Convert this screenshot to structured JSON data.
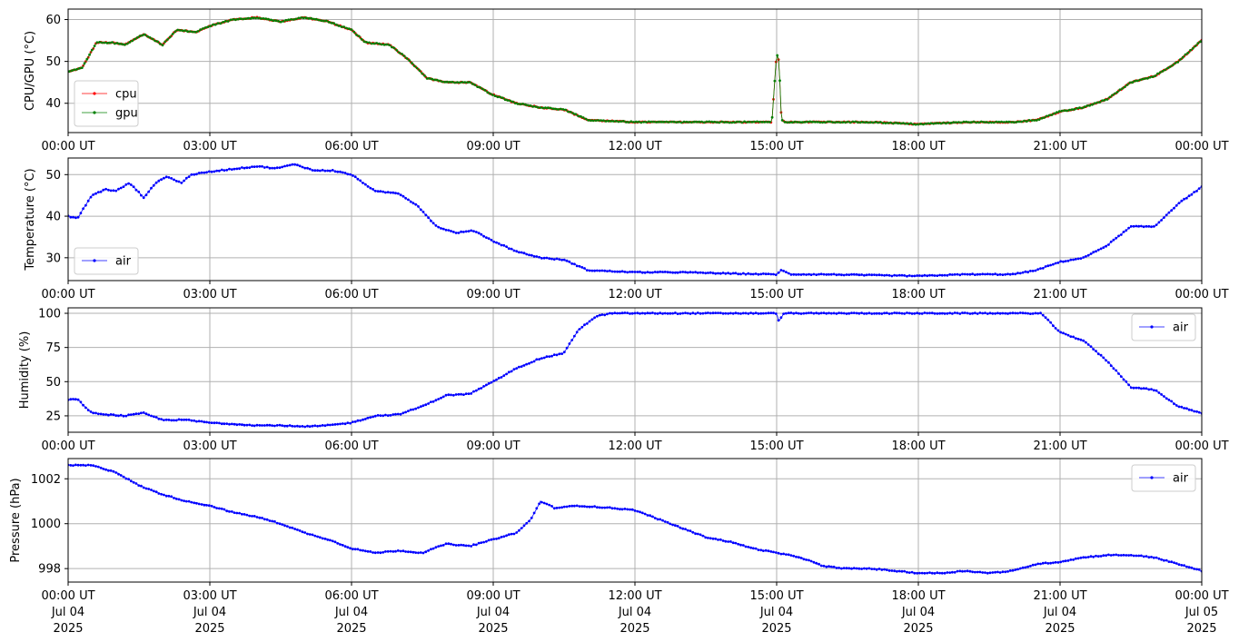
{
  "x_ticks": [
    {
      "t": 0,
      "time": "00:00 UT",
      "date": "Jul 04",
      "year": "2025"
    },
    {
      "t": 3,
      "time": "03:00 UT",
      "date": "Jul 04",
      "year": "2025"
    },
    {
      "t": 6,
      "time": "06:00 UT",
      "date": "Jul 04",
      "year": "2025"
    },
    {
      "t": 9,
      "time": "09:00 UT",
      "date": "Jul 04",
      "year": "2025"
    },
    {
      "t": 12,
      "time": "12:00 UT",
      "date": "Jul 04",
      "year": "2025"
    },
    {
      "t": 15,
      "time": "15:00 UT",
      "date": "Jul 04",
      "year": "2025"
    },
    {
      "t": 18,
      "time": "18:00 UT",
      "date": "Jul 04",
      "year": "2025"
    },
    {
      "t": 21,
      "time": "21:00 UT",
      "date": "Jul 04",
      "year": "2025"
    },
    {
      "t": 24,
      "time": "00:00 UT",
      "date": "Jul 05",
      "year": "2025"
    }
  ],
  "chart_data": [
    {
      "type": "line",
      "ylabel": "CPU/GPU (°C)",
      "xlim": [
        "2025-07-04 00:00",
        "2025-07-05 00:00"
      ],
      "ylim": [
        33,
        62.5
      ],
      "yticks": [
        40,
        50,
        60
      ],
      "grid": true,
      "legend": "lower-left",
      "x_hours": [
        0,
        0.3,
        0.6,
        0.9,
        1.2,
        1.6,
        2.0,
        2.3,
        2.7,
        3.0,
        3.5,
        4.0,
        4.5,
        5.0,
        5.5,
        6.0,
        6.3,
        6.8,
        7.2,
        7.6,
        8.0,
        8.5,
        9.0,
        9.5,
        10.0,
        10.5,
        11.0,
        12.0,
        13.0,
        14.0,
        14.9,
        15.0,
        15.05,
        15.1,
        15.2,
        16.0,
        17.0,
        18.0,
        19.0,
        20.0,
        20.5,
        21.0,
        21.5,
        22.0,
        22.5,
        23.0,
        23.5,
        24.0
      ],
      "series": [
        {
          "name": "cpu",
          "color": "#ff0000",
          "values": [
            47.5,
            48.5,
            54.5,
            54.5,
            54,
            56.5,
            54,
            57.5,
            57,
            58.5,
            60,
            60.5,
            59.5,
            60.5,
            59.5,
            57.5,
            54.5,
            54,
            50.5,
            46,
            45,
            45,
            42,
            40,
            39,
            38.5,
            36,
            35.5,
            35.5,
            35.5,
            35.5,
            52,
            50,
            36,
            35.5,
            35.5,
            35.5,
            35,
            35.5,
            35.5,
            36,
            38,
            39,
            41,
            45,
            46.5,
            50,
            55
          ]
        },
        {
          "name": "gpu",
          "color": "#008000",
          "values": [
            47.5,
            48.5,
            54.5,
            54.5,
            54,
            56.5,
            54,
            57.5,
            57,
            58.5,
            60,
            60.5,
            59.5,
            60.5,
            59.5,
            57.5,
            54.5,
            54,
            50.5,
            46,
            45,
            45,
            42,
            40,
            39,
            38.5,
            36,
            35.5,
            35.5,
            35.5,
            35.5,
            52,
            50,
            36,
            35.5,
            35.5,
            35.5,
            35,
            35.5,
            35.5,
            36,
            38,
            39,
            41,
            45,
            46.5,
            50,
            55
          ]
        }
      ]
    },
    {
      "type": "line",
      "ylabel": "Temperature (°C)",
      "xlim": [
        "2025-07-04 00:00",
        "2025-07-05 00:00"
      ],
      "ylim": [
        24.5,
        54
      ],
      "yticks": [
        30,
        40,
        50
      ],
      "grid": true,
      "legend": "lower-left",
      "x_hours": [
        0,
        0.2,
        0.5,
        0.8,
        1.0,
        1.3,
        1.6,
        1.9,
        2.1,
        2.4,
        2.6,
        2.9,
        3.2,
        3.6,
        4.0,
        4.4,
        4.8,
        5.2,
        5.6,
        6.0,
        6.5,
        7.0,
        7.4,
        7.8,
        8.2,
        8.6,
        9.0,
        9.5,
        10.0,
        10.5,
        11.0,
        12.0,
        13.0,
        14.0,
        15.0,
        15.1,
        15.3,
        16.0,
        17.0,
        18.0,
        19.0,
        20.0,
        20.5,
        21.0,
        21.5,
        22.0,
        22.5,
        23.0,
        23.5,
        24.0
      ],
      "series": [
        {
          "name": "air",
          "color": "#0000ff",
          "values": [
            40,
            39.5,
            45,
            46.5,
            46,
            48,
            44.5,
            48.5,
            49.5,
            48,
            50,
            50.5,
            51,
            51.5,
            52,
            51.5,
            52.5,
            51,
            51,
            50,
            46,
            45.5,
            42.5,
            37.5,
            36,
            36.5,
            34,
            31.5,
            30,
            29.5,
            27,
            26.5,
            26.5,
            26.2,
            26,
            27,
            26,
            26,
            25.8,
            25.6,
            26,
            26,
            27,
            29,
            30,
            33,
            37.5,
            37.5,
            43,
            47
          ]
        }
      ]
    },
    {
      "type": "line",
      "ylabel": "Humidity (%)",
      "xlim": [
        "2025-07-04 00:00",
        "2025-07-05 00:00"
      ],
      "ylim": [
        13,
        104
      ],
      "yticks": [
        25,
        50,
        75,
        100
      ],
      "grid": true,
      "legend": "top-right",
      "x_hours": [
        0,
        0.2,
        0.5,
        0.8,
        1.2,
        1.6,
        2.0,
        2.5,
        3.0,
        3.5,
        4.0,
        4.5,
        5.0,
        5.5,
        6.0,
        6.5,
        7.0,
        7.5,
        8.0,
        8.5,
        9.0,
        9.5,
        10.0,
        10.5,
        10.8,
        11.2,
        11.5,
        12.0,
        13.0,
        14.0,
        15.0,
        15.05,
        15.15,
        15.4,
        16.0,
        17.0,
        18.0,
        19.0,
        20.0,
        20.6,
        21.0,
        21.5,
        22.0,
        22.5,
        23.0,
        23.5,
        24.0
      ],
      "series": [
        {
          "name": "air",
          "color": "#0000ff",
          "values": [
            37,
            37,
            27,
            26,
            25,
            27,
            22,
            22,
            20,
            19,
            18,
            18,
            17,
            18,
            20,
            25,
            26,
            32,
            40,
            41,
            50,
            60,
            67,
            71,
            88,
            98,
            100,
            100,
            100,
            100,
            100,
            94,
            100,
            100,
            100,
            100,
            100,
            100,
            100,
            100,
            86,
            80,
            65,
            46,
            44,
            32,
            27
          ]
        }
      ]
    },
    {
      "type": "line",
      "ylabel": "Pressure (hPa)",
      "xlim": [
        "2025-07-04 00:00",
        "2025-07-05 00:00"
      ],
      "ylim": [
        997.4,
        1002.9
      ],
      "yticks": [
        998,
        1000,
        1002
      ],
      "grid": true,
      "legend": "top-right",
      "x_hours": [
        0,
        0.5,
        1.0,
        1.5,
        2.0,
        2.5,
        3.0,
        3.5,
        4.0,
        4.5,
        5.0,
        5.5,
        6.0,
        6.5,
        7.0,
        7.5,
        8.0,
        8.5,
        9.0,
        9.5,
        9.8,
        10.0,
        10.3,
        10.8,
        11.5,
        12.0,
        12.5,
        13.0,
        13.5,
        14.0,
        14.5,
        15.0,
        15.5,
        16.0,
        16.5,
        17.0,
        17.5,
        18.0,
        18.5,
        19.0,
        19.5,
        20.0,
        20.5,
        21.0,
        21.5,
        22.0,
        22.5,
        23.0,
        23.5,
        24.0
      ],
      "series": [
        {
          "name": "air",
          "color": "#0000ff",
          "values": [
            1002.6,
            1002.6,
            1002.3,
            1001.7,
            1001.3,
            1001.0,
            1000.8,
            1000.5,
            1000.3,
            1000.0,
            999.6,
            999.3,
            998.9,
            998.7,
            998.8,
            998.7,
            999.1,
            999.0,
            999.3,
            999.6,
            1000.2,
            1001.0,
            1000.7,
            1000.8,
            1000.7,
            1000.6,
            1000.2,
            999.8,
            999.4,
            999.2,
            998.9,
            998.7,
            998.5,
            998.1,
            998.0,
            998.0,
            997.9,
            997.8,
            997.8,
            997.9,
            997.8,
            997.9,
            998.2,
            998.3,
            998.5,
            998.6,
            998.6,
            998.5,
            998.2,
            997.9
          ]
        }
      ]
    }
  ]
}
